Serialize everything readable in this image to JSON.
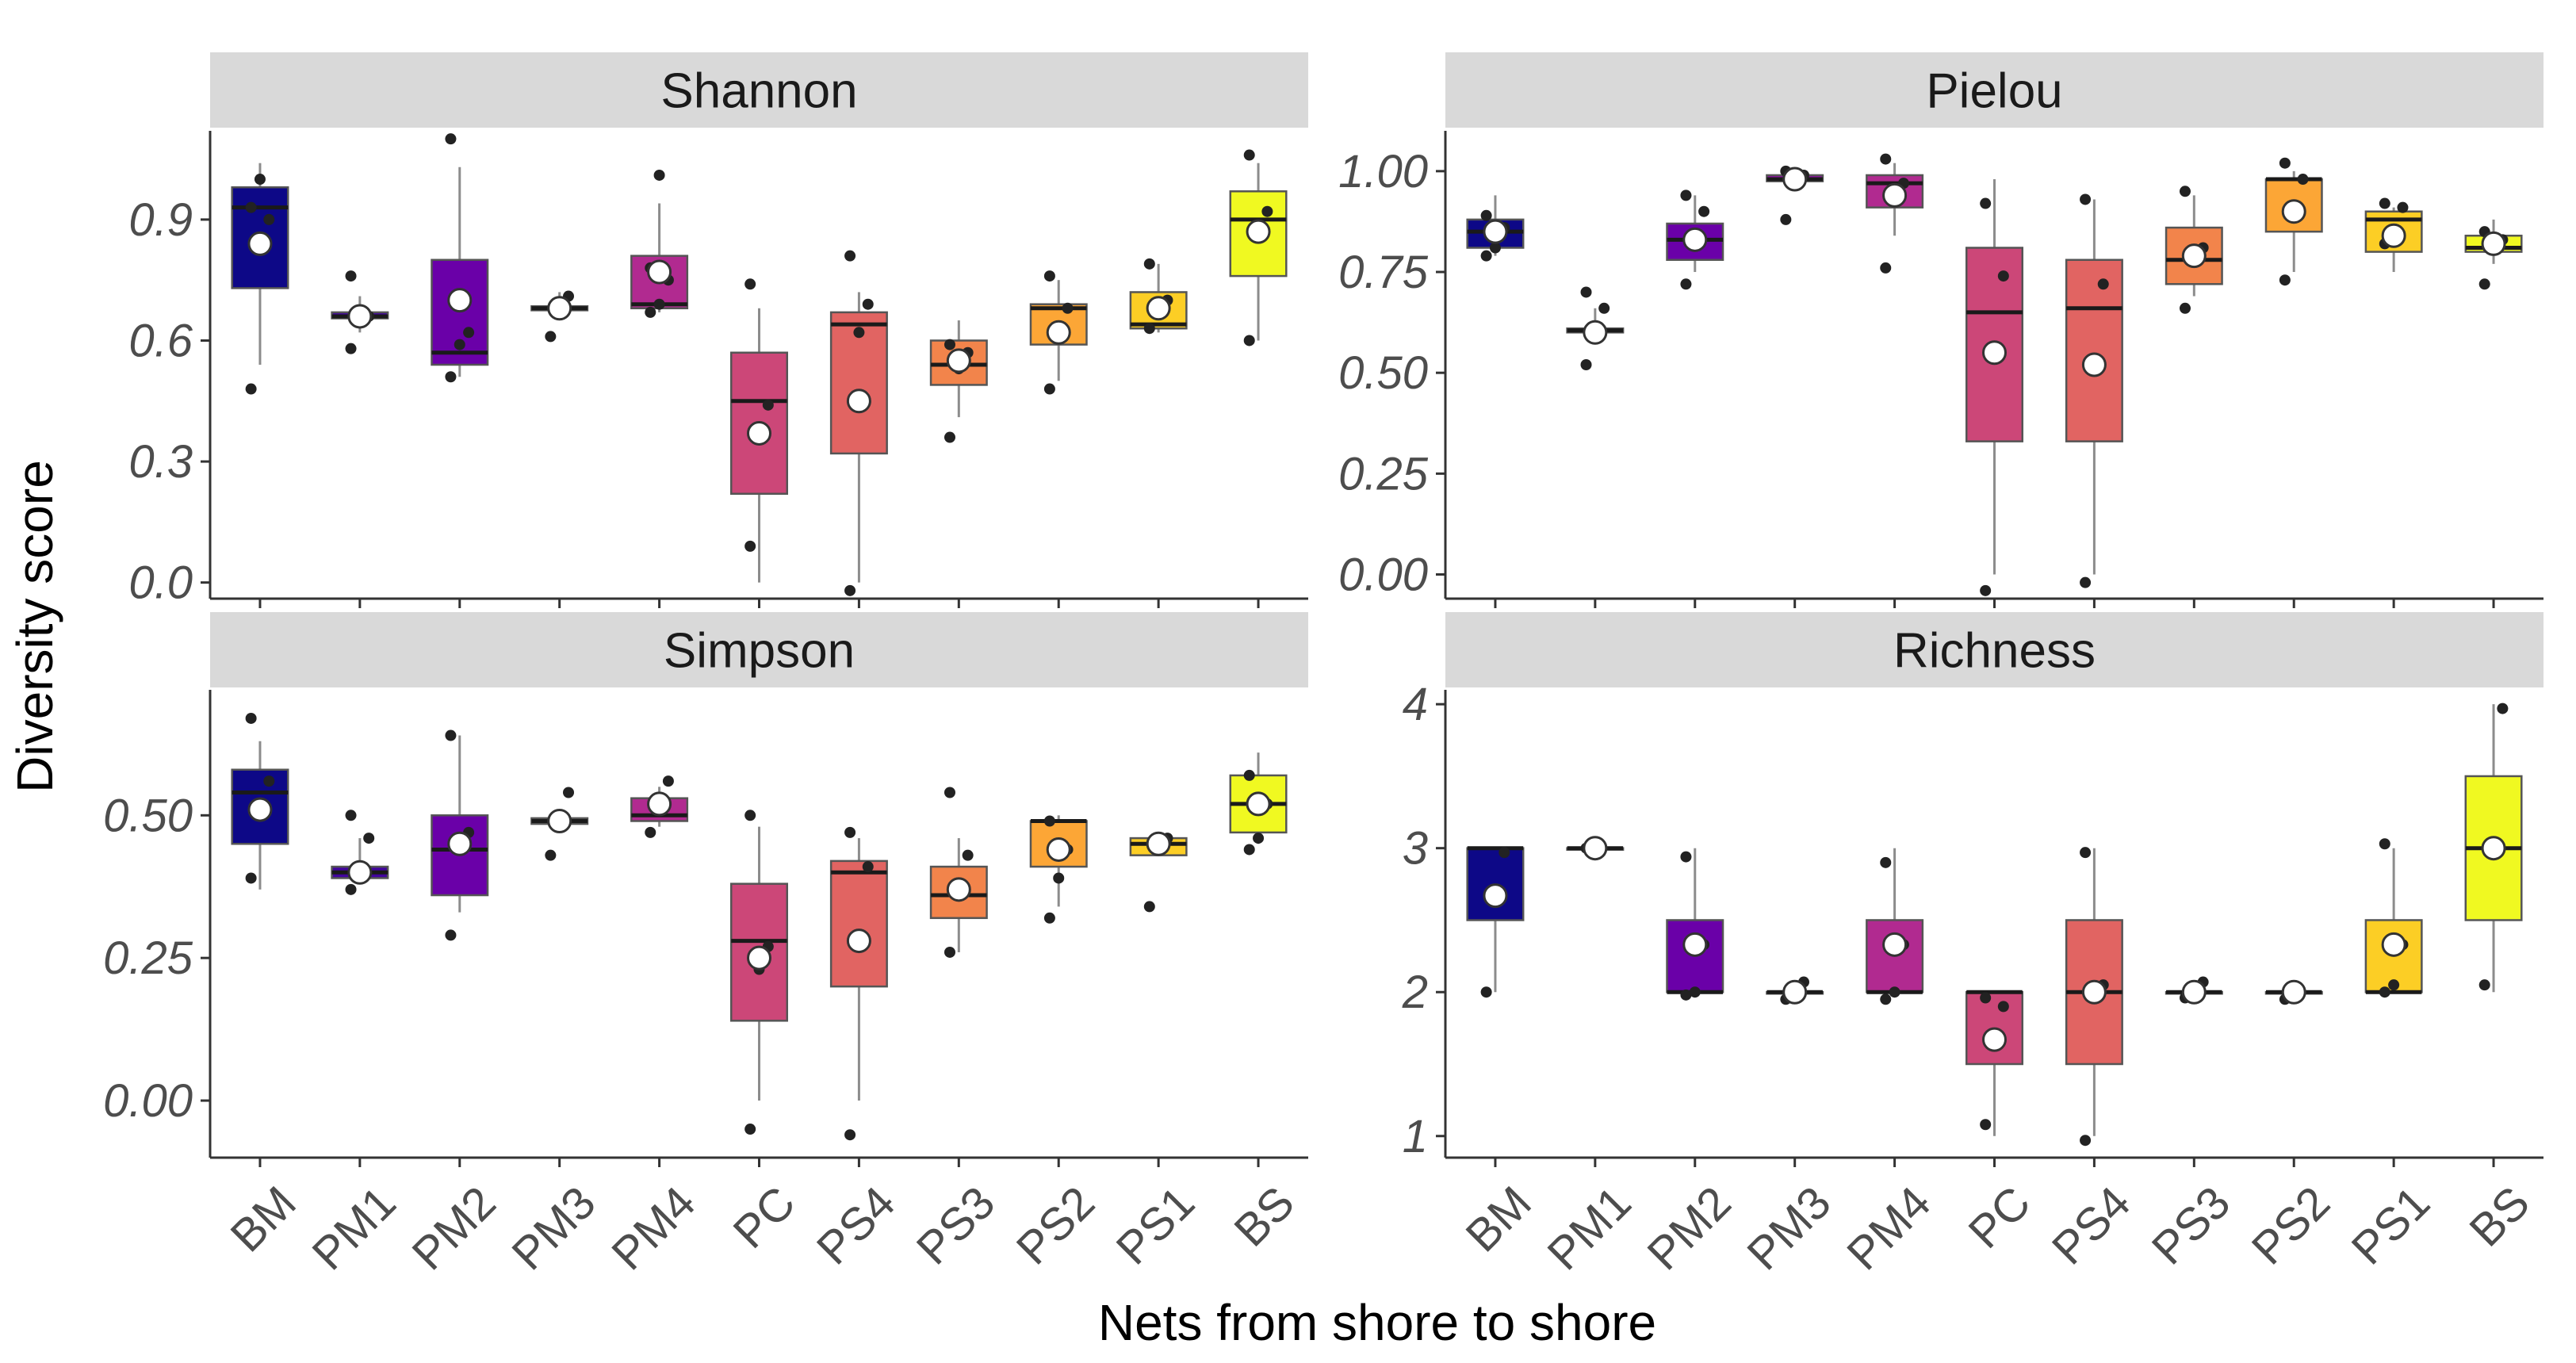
{
  "chart_data": {
    "type": "boxplot",
    "xlabel": "Nets from shore to shore",
    "ylabel": "Diversity score",
    "categories": [
      "BM",
      "PM1",
      "PM2",
      "PM3",
      "PM4",
      "PC",
      "PS4",
      "PS3",
      "PS2",
      "PS1",
      "BS"
    ],
    "colors": [
      "#0d0887",
      "#41049d",
      "#6a00a8",
      "#8f0da4",
      "#b12a90",
      "#cc4778",
      "#e16462",
      "#f2844b",
      "#fca636",
      "#fcce25",
      "#f0f921"
    ],
    "facets": [
      {
        "title": "Shannon",
        "ylim": [
          -0.04,
          1.12
        ],
        "yticks": [
          0.0,
          0.3,
          0.6,
          0.9
        ],
        "ytick_labels": [
          "0.0",
          "0.3",
          "0.6",
          "0.9"
        ],
        "boxes": [
          {
            "q1": 0.73,
            "median": 0.93,
            "q3": 0.98,
            "lower": 0.54,
            "upper": 1.04,
            "mean": 0.84,
            "points": [
              0.48,
              0.84,
              0.9,
              0.93,
              1.0
            ]
          },
          {
            "q1": 0.655,
            "median": 0.66,
            "q3": 0.67,
            "lower": 0.62,
            "upper": 0.71,
            "mean": 0.66,
            "points": [
              0.58,
              0.66,
              0.66,
              0.76
            ]
          },
          {
            "q1": 0.54,
            "median": 0.57,
            "q3": 0.8,
            "lower": 0.51,
            "upper": 1.03,
            "mean": 0.7,
            "points": [
              0.51,
              0.59,
              0.62,
              1.1
            ]
          },
          {
            "q1": 0.675,
            "median": 0.68,
            "q3": 0.685,
            "lower": 0.65,
            "upper": 0.72,
            "mean": 0.68,
            "points": [
              0.61,
              0.68,
              0.71
            ]
          },
          {
            "q1": 0.68,
            "median": 0.69,
            "q3": 0.81,
            "lower": 0.67,
            "upper": 0.94,
            "mean": 0.77,
            "points": [
              0.67,
              0.69,
              0.75,
              0.78,
              1.01
            ]
          },
          {
            "q1": 0.22,
            "median": 0.45,
            "q3": 0.57,
            "lower": 0.0,
            "upper": 0.68,
            "mean": 0.37,
            "points": [
              0.09,
              0.37,
              0.44,
              0.74
            ]
          },
          {
            "q1": 0.32,
            "median": 0.64,
            "q3": 0.67,
            "lower": 0.0,
            "upper": 0.72,
            "mean": 0.45,
            "points": [
              -0.02,
              0.62,
              0.69,
              0.81
            ]
          },
          {
            "q1": 0.49,
            "median": 0.54,
            "q3": 0.6,
            "lower": 0.41,
            "upper": 0.65,
            "mean": 0.55,
            "points": [
              0.36,
              0.53,
              0.57,
              0.59
            ]
          },
          {
            "q1": 0.59,
            "median": 0.68,
            "q3": 0.69,
            "lower": 0.5,
            "upper": 0.75,
            "mean": 0.62,
            "points": [
              0.48,
              0.62,
              0.68,
              0.76
            ]
          },
          {
            "q1": 0.63,
            "median": 0.64,
            "q3": 0.72,
            "lower": 0.62,
            "upper": 0.79,
            "mean": 0.68,
            "points": [
              0.63,
              0.68,
              0.7,
              0.79
            ]
          },
          {
            "q1": 0.76,
            "median": 0.9,
            "q3": 0.97,
            "lower": 0.6,
            "upper": 1.04,
            "mean": 0.87,
            "points": [
              0.6,
              0.87,
              0.92,
              1.06
            ]
          }
        ]
      },
      {
        "title": "Pielou",
        "ylim": [
          -0.06,
          1.1
        ],
        "yticks": [
          0.0,
          0.25,
          0.5,
          0.75,
          1.0
        ],
        "ytick_labels": [
          "0.00",
          "0.25",
          "0.50",
          "0.75",
          "1.00"
        ],
        "boxes": [
          {
            "q1": 0.81,
            "median": 0.85,
            "q3": 0.88,
            "lower": 0.79,
            "upper": 0.94,
            "mean": 0.85,
            "points": [
              0.79,
              0.81,
              0.86,
              0.89
            ]
          },
          {
            "q1": 0.6,
            "median": 0.605,
            "q3": 0.61,
            "lower": 0.57,
            "upper": 0.66,
            "mean": 0.6,
            "points": [
              0.52,
              0.6,
              0.66,
              0.7
            ]
          },
          {
            "q1": 0.78,
            "median": 0.83,
            "q3": 0.87,
            "lower": 0.75,
            "upper": 0.94,
            "mean": 0.83,
            "points": [
              0.72,
              0.83,
              0.9,
              0.94
            ]
          },
          {
            "q1": 0.975,
            "median": 0.98,
            "q3": 0.99,
            "lower": 0.95,
            "upper": 1.0,
            "mean": 0.98,
            "points": [
              0.88,
              0.98,
              0.99,
              1.0
            ]
          },
          {
            "q1": 0.91,
            "median": 0.97,
            "q3": 0.99,
            "lower": 0.84,
            "upper": 1.02,
            "mean": 0.94,
            "points": [
              0.76,
              0.94,
              0.97,
              1.03
            ]
          },
          {
            "q1": 0.33,
            "median": 0.65,
            "q3": 0.81,
            "lower": 0.0,
            "upper": 0.98,
            "mean": 0.55,
            "points": [
              -0.04,
              0.55,
              0.74,
              0.92
            ]
          },
          {
            "q1": 0.33,
            "median": 0.66,
            "q3": 0.78,
            "lower": 0.0,
            "upper": 0.93,
            "mean": 0.52,
            "points": [
              -0.02,
              0.53,
              0.72,
              0.93
            ]
          },
          {
            "q1": 0.72,
            "median": 0.78,
            "q3": 0.86,
            "lower": 0.69,
            "upper": 0.94,
            "mean": 0.79,
            "points": [
              0.66,
              0.79,
              0.81,
              0.95
            ]
          },
          {
            "q1": 0.85,
            "median": 0.98,
            "q3": 0.98,
            "lower": 0.75,
            "upper": 1.0,
            "mean": 0.9,
            "points": [
              0.73,
              0.9,
              0.98,
              1.02
            ]
          },
          {
            "q1": 0.8,
            "median": 0.88,
            "q3": 0.9,
            "lower": 0.75,
            "upper": 0.91,
            "mean": 0.84,
            "points": [
              0.82,
              0.84,
              0.91,
              0.92
            ]
          },
          {
            "q1": 0.8,
            "median": 0.81,
            "q3": 0.84,
            "lower": 0.77,
            "upper": 0.88,
            "mean": 0.82,
            "points": [
              0.72,
              0.82,
              0.83,
              0.85
            ]
          }
        ]
      },
      {
        "title": "Simpson",
        "ylim": [
          -0.1,
          0.72
        ],
        "yticks": [
          0.0,
          0.25,
          0.5
        ],
        "ytick_labels": [
          "0.00",
          "0.25",
          "0.50"
        ],
        "boxes": [
          {
            "q1": 0.45,
            "median": 0.54,
            "q3": 0.58,
            "lower": 0.37,
            "upper": 0.63,
            "mean": 0.51,
            "points": [
              0.39,
              0.51,
              0.56,
              0.67
            ]
          },
          {
            "q1": 0.39,
            "median": 0.4,
            "q3": 0.41,
            "lower": 0.38,
            "upper": 0.46,
            "mean": 0.4,
            "points": [
              0.37,
              0.4,
              0.46,
              0.5
            ]
          },
          {
            "q1": 0.36,
            "median": 0.44,
            "q3": 0.5,
            "lower": 0.33,
            "upper": 0.64,
            "mean": 0.45,
            "points": [
              0.29,
              0.44,
              0.47,
              0.64
            ]
          },
          {
            "q1": 0.485,
            "median": 0.49,
            "q3": 0.495,
            "lower": 0.47,
            "upper": 0.51,
            "mean": 0.49,
            "points": [
              0.43,
              0.49,
              0.54
            ]
          },
          {
            "q1": 0.49,
            "median": 0.5,
            "q3": 0.53,
            "lower": 0.48,
            "upper": 0.55,
            "mean": 0.52,
            "points": [
              0.47,
              0.52,
              0.56
            ]
          },
          {
            "q1": 0.14,
            "median": 0.28,
            "q3": 0.38,
            "lower": 0.0,
            "upper": 0.48,
            "mean": 0.25,
            "points": [
              -0.05,
              0.23,
              0.27,
              0.5
            ]
          },
          {
            "q1": 0.2,
            "median": 0.4,
            "q3": 0.42,
            "lower": 0.0,
            "upper": 0.46,
            "mean": 0.28,
            "points": [
              -0.06,
              0.28,
              0.41,
              0.47
            ]
          },
          {
            "q1": 0.32,
            "median": 0.36,
            "q3": 0.41,
            "lower": 0.26,
            "upper": 0.46,
            "mean": 0.37,
            "points": [
              0.26,
              0.37,
              0.43,
              0.54
            ]
          },
          {
            "q1": 0.41,
            "median": 0.49,
            "q3": 0.49,
            "lower": 0.34,
            "upper": 0.5,
            "mean": 0.44,
            "points": [
              0.32,
              0.39,
              0.44,
              0.49
            ]
          },
          {
            "q1": 0.43,
            "median": 0.45,
            "q3": 0.46,
            "lower": 0.43,
            "upper": 0.47,
            "mean": 0.45,
            "points": [
              0.34,
              0.45,
              0.46
            ]
          },
          {
            "q1": 0.47,
            "median": 0.52,
            "q3": 0.57,
            "lower": 0.45,
            "upper": 0.61,
            "mean": 0.52,
            "points": [
              0.44,
              0.46,
              0.52,
              0.57
            ]
          }
        ]
      },
      {
        "title": "Richness",
        "ylim": [
          0.85,
          4.1
        ],
        "yticks": [
          1,
          2,
          3,
          4
        ],
        "ytick_labels": [
          "1",
          "2",
          "3",
          "4"
        ],
        "boxes": [
          {
            "q1": 2.5,
            "median": 3.0,
            "q3": 3.0,
            "lower": 2.0,
            "upper": 3.0,
            "mean": 2.67,
            "points": [
              2.0,
              2.67,
              2.97
            ]
          },
          {
            "q1": 3.0,
            "median": 3.0,
            "q3": 3.0,
            "lower": 3.0,
            "upper": 3.0,
            "mean": 3.0,
            "points": [
              3.0,
              3.0
            ]
          },
          {
            "q1": 2.0,
            "median": 2.0,
            "q3": 2.5,
            "lower": 2.0,
            "upper": 3.0,
            "mean": 2.33,
            "points": [
              1.98,
              2.0,
              2.33,
              2.94
            ]
          },
          {
            "q1": 2.0,
            "median": 2.0,
            "q3": 2.0,
            "lower": 2.0,
            "upper": 2.0,
            "mean": 2.0,
            "points": [
              1.95,
              2.0,
              2.07
            ]
          },
          {
            "q1": 2.0,
            "median": 2.0,
            "q3": 2.5,
            "lower": 2.0,
            "upper": 3.0,
            "mean": 2.33,
            "points": [
              1.95,
              2.0,
              2.33,
              2.9
            ]
          },
          {
            "q1": 1.5,
            "median": 2.0,
            "q3": 2.0,
            "lower": 1.0,
            "upper": 2.0,
            "mean": 1.67,
            "points": [
              1.08,
              1.67,
              1.9,
              1.96
            ]
          },
          {
            "q1": 1.5,
            "median": 2.0,
            "q3": 2.5,
            "lower": 1.0,
            "upper": 3.0,
            "mean": 2.0,
            "points": [
              0.97,
              2.0,
              2.05,
              2.97
            ]
          },
          {
            "q1": 2.0,
            "median": 2.0,
            "q3": 2.0,
            "lower": 2.0,
            "upper": 2.0,
            "mean": 2.0,
            "points": [
              1.96,
              2.0,
              2.07
            ]
          },
          {
            "q1": 2.0,
            "median": 2.0,
            "q3": 2.0,
            "lower": 2.0,
            "upper": 2.0,
            "mean": 2.0,
            "points": [
              1.95,
              2.0
            ]
          },
          {
            "q1": 2.0,
            "median": 2.0,
            "q3": 2.5,
            "lower": 2.0,
            "upper": 3.0,
            "mean": 2.33,
            "points": [
              2.0,
              2.05,
              2.33,
              3.03
            ]
          },
          {
            "q1": 2.5,
            "median": 3.0,
            "q3": 3.5,
            "lower": 2.0,
            "upper": 4.0,
            "mean": 3.0,
            "points": [
              2.05,
              3.0,
              3.97
            ]
          }
        ]
      }
    ]
  }
}
